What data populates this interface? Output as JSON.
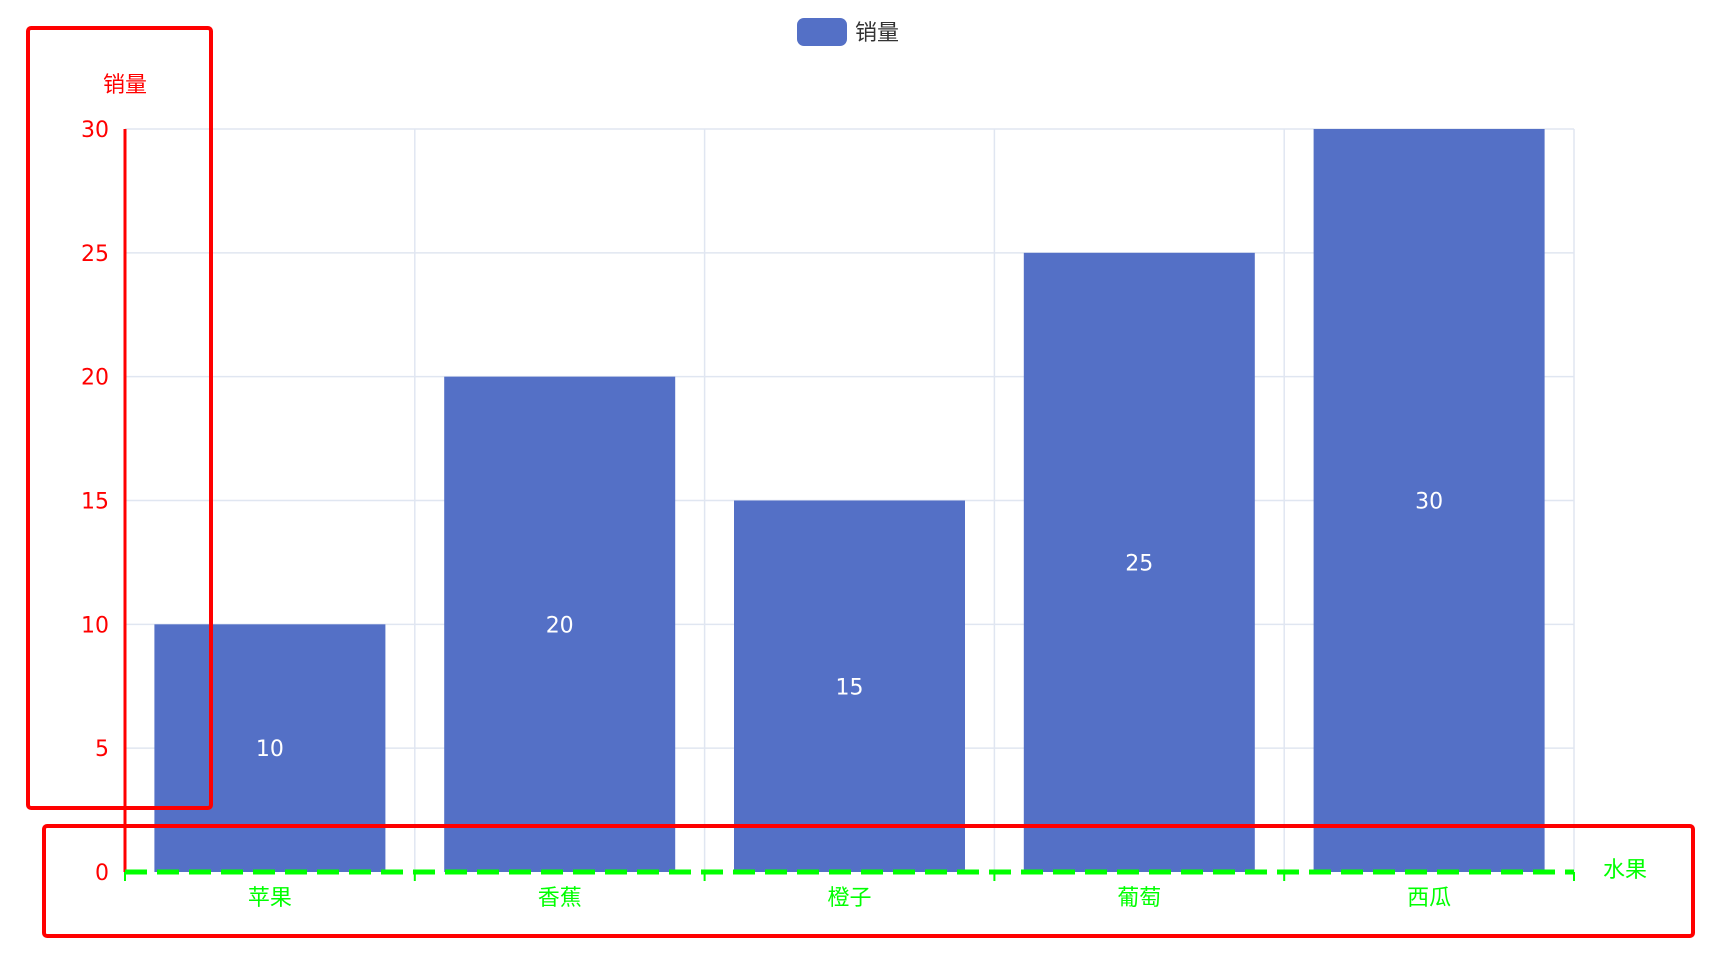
{
  "chart_data": {
    "type": "bar",
    "categories": [
      "苹果",
      "香蕉",
      "橙子",
      "葡萄",
      "西瓜"
    ],
    "series": [
      {
        "name": "销量",
        "values": [
          10,
          20,
          15,
          25,
          30
        ],
        "color": "#5470c6"
      }
    ],
    "xlabel": "水果",
    "ylabel": "销量",
    "ylim": [
      0,
      30
    ],
    "yticks": [
      "0",
      "5",
      "10",
      "15",
      "20",
      "25",
      "30"
    ],
    "grid": true,
    "legend": {
      "position": "top-center",
      "entries": [
        "销量"
      ]
    },
    "data_labels": {
      "position": "inside",
      "color": "#ffffff"
    },
    "colors": {
      "bar": "#5470c6",
      "y_axis": "#ff0000",
      "x_axis": "#00ff00",
      "grid": "#e0e6f1",
      "highlight_box": "#ff0000",
      "legend_text": "#333333",
      "data_label": "#ffffff"
    }
  }
}
